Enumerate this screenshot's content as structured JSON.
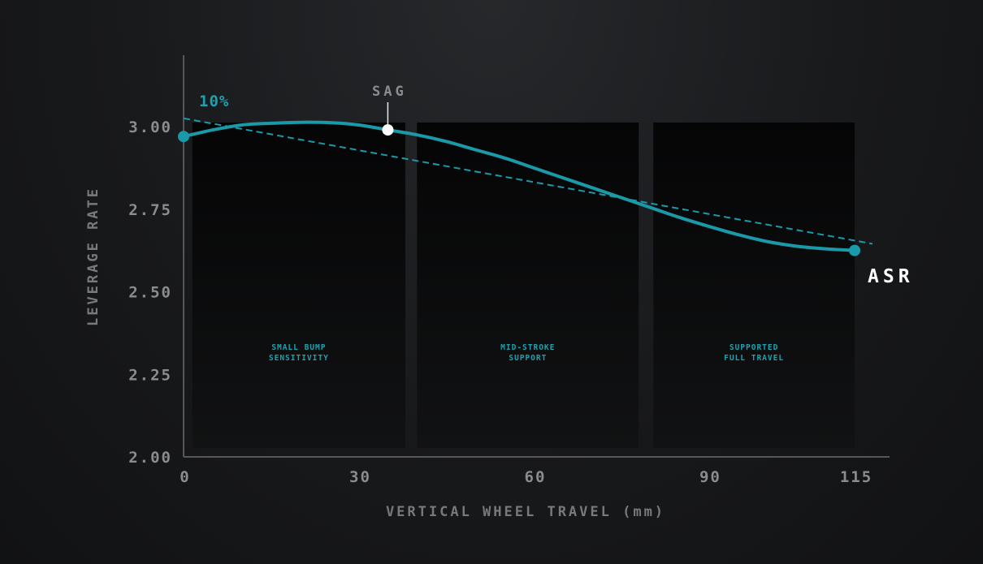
{
  "chart_data": {
    "type": "line",
    "xlabel": "VERTICAL WHEEL TRAVEL (mm)",
    "ylabel": "LEVERAGE RATE",
    "xlim": [
      0,
      115
    ],
    "ylim": [
      2.0,
      3.0
    ],
    "xticks": [
      "0",
      "30",
      "60",
      "90",
      "115"
    ],
    "yticks": [
      "3.00",
      "2.75",
      "2.50",
      "2.25",
      "2.00"
    ],
    "series": [
      {
        "x": [
          0,
          5,
          10,
          15,
          20,
          25,
          30,
          35,
          40,
          45,
          50,
          55,
          60,
          65,
          70,
          75,
          80,
          85,
          90,
          95,
          100,
          105,
          110,
          115
        ],
        "y": [
          2.97,
          2.99,
          3.005,
          3.01,
          3.013,
          3.012,
          3.005,
          2.99,
          2.975,
          2.955,
          2.93,
          2.905,
          2.875,
          2.845,
          2.815,
          2.785,
          2.755,
          2.725,
          2.698,
          2.673,
          2.652,
          2.638,
          2.63,
          2.625
        ],
        "style": "solid"
      },
      {
        "x": [
          0,
          115
        ],
        "y": [
          3.025,
          2.655
        ],
        "style": "dashed"
      }
    ],
    "zones": [
      {
        "label_line1": "SMALL BUMP",
        "label_line2": "SENSITIVITY",
        "x_range": [
          1.5,
          38
        ]
      },
      {
        "label_line1": "MID-STROKE",
        "label_line2": "SUPPORT",
        "x_range": [
          40,
          78
        ]
      },
      {
        "label_line1": "SUPPORTED",
        "label_line2": "FULL TRAVEL",
        "x_range": [
          80.5,
          115
        ]
      }
    ],
    "annotations": {
      "start_label": "10%",
      "sag_label": "SAG",
      "sag_x": 35,
      "end_label": "ASR"
    },
    "colors": {
      "line": "#1a9aa8",
      "label_accent": "#1aa3b0",
      "axis": "#55575a",
      "tick": "#8a8c8e",
      "zone_fill": "#0a0a0b"
    },
    "grid": false,
    "legend": "none"
  }
}
